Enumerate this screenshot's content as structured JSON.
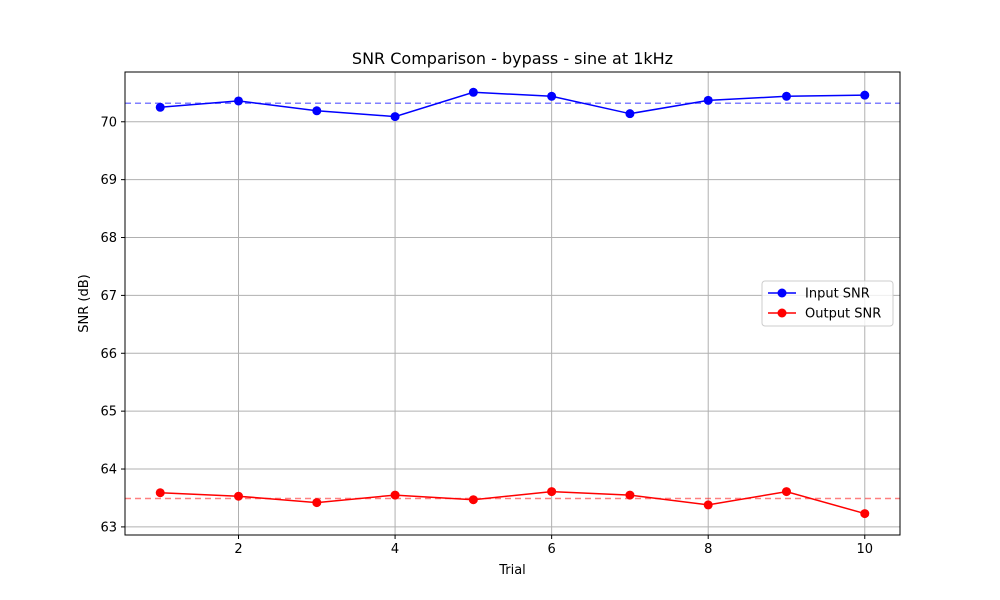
{
  "chart_data": {
    "type": "line",
    "title": "SNR Comparison - bypass - sine at 1kHz",
    "xlabel": "Trial",
    "ylabel": "SNR (dB)",
    "x": [
      1,
      2,
      3,
      4,
      5,
      6,
      7,
      8,
      9,
      10
    ],
    "xlim": [
      0.55,
      10.45
    ],
    "ylim": [
      62.86,
      70.86
    ],
    "xticks": [
      2,
      4,
      6,
      8,
      10
    ],
    "yticks": [
      63,
      64,
      65,
      66,
      67,
      68,
      69,
      70
    ],
    "grid": true,
    "legend_position": "center-right",
    "series": [
      {
        "name": "Input SNR",
        "color": "#0000ff",
        "marker": "circle",
        "values": [
          70.25,
          70.36,
          70.19,
          70.09,
          70.51,
          70.44,
          70.14,
          70.37,
          70.44,
          70.46
        ],
        "mean": 70.32
      },
      {
        "name": "Output SNR",
        "color": "#ff0000",
        "marker": "circle",
        "values": [
          63.59,
          63.53,
          63.42,
          63.55,
          63.47,
          63.61,
          63.55,
          63.38,
          63.61,
          63.23
        ],
        "mean": 63.49
      }
    ]
  }
}
